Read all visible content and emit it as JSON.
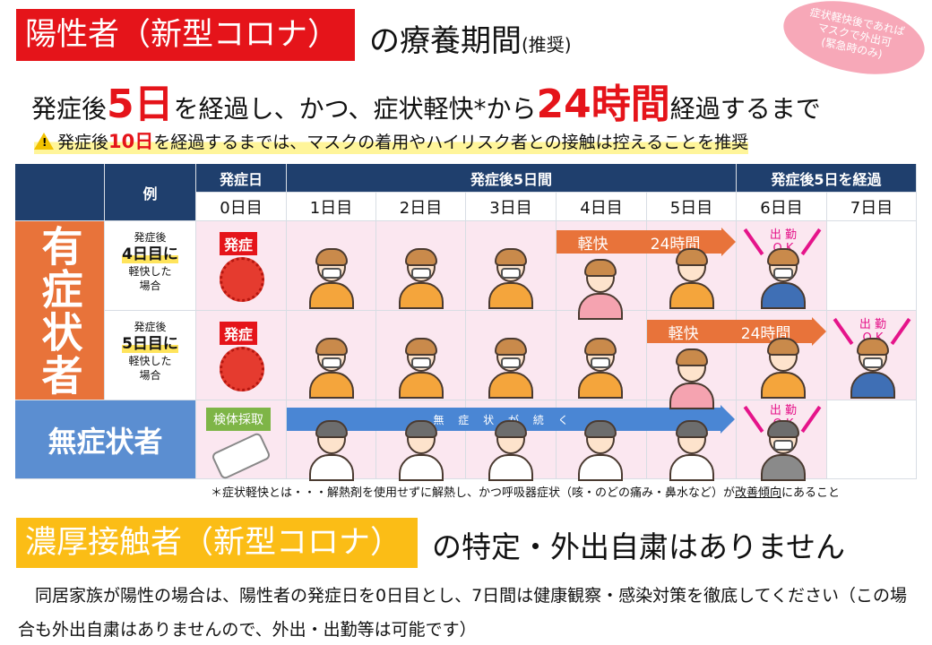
{
  "title": {
    "highlight": "陽性者（新型コロナ）",
    "rest": "の療養期間",
    "note": "(推奨)"
  },
  "bubble": {
    "line1": "症状軽快後であれば",
    "line2": "マスクで外出可",
    "line3": "(緊急時のみ)"
  },
  "headline": {
    "p1": "発症後",
    "d1": "5日",
    "p2": "を経過し、かつ、症状軽快*から",
    "d2": "24時間",
    "p3": "経過するまで"
  },
  "warning": {
    "p1": "発症後",
    "d": "10日",
    "p2": "を経過するまでは、マスクの着用やハイリスク者との接触は控えることを推奨"
  },
  "table": {
    "col_example": "例",
    "group_onset": "発症日",
    "group_5days": "発症後5日間",
    "group_after": "発症後5日を経過",
    "days": [
      "0日目",
      "1日目",
      "2日目",
      "3日目",
      "4日目",
      "5日目",
      "6日目",
      "7日目"
    ],
    "symptomatic": "有症状者",
    "asymptomatic": "無症状者",
    "row1": {
      "pre": "発症後",
      "day": "4日目に",
      "post1": "軽快した",
      "post2": "場合"
    },
    "row2": {
      "pre": "発症後",
      "day": "5日目に",
      "post1": "軽快した",
      "post2": "場合"
    },
    "onset_tag": "発症",
    "recover_label": "軽快",
    "hours_label": "24時間",
    "ok_line1": "出 勤",
    "ok_line2": "O K",
    "test_tag": "検体採取",
    "no_symptom": "無 症 状 が 続 く"
  },
  "footnote": {
    "p1": "＊症状軽快とは・・・解熱剤を使用せずに解熱し、かつ呼吸器症状（咳・のどの痛み・鼻水など）が",
    "u": "改善傾向",
    "p2": "にあること"
  },
  "section2": {
    "highlight": "濃厚接触者（新型コロナ）",
    "rest": "の特定・外出自粛はありません"
  },
  "paragraph": "　同居家族が陽性の場合は、陽性者の発症日を0日目とし、7日間は健康観察・感染対策を徹底してください（この場合も外出自粛はありませんので、外出・出勤等は可能です）",
  "colors": {
    "red": "#e5141a",
    "orange": "#e8733a",
    "blue": "#5b8ed1",
    "navy": "#1f3f6d",
    "yellow": "#fbbd16",
    "pink": "#fbe7f0"
  }
}
